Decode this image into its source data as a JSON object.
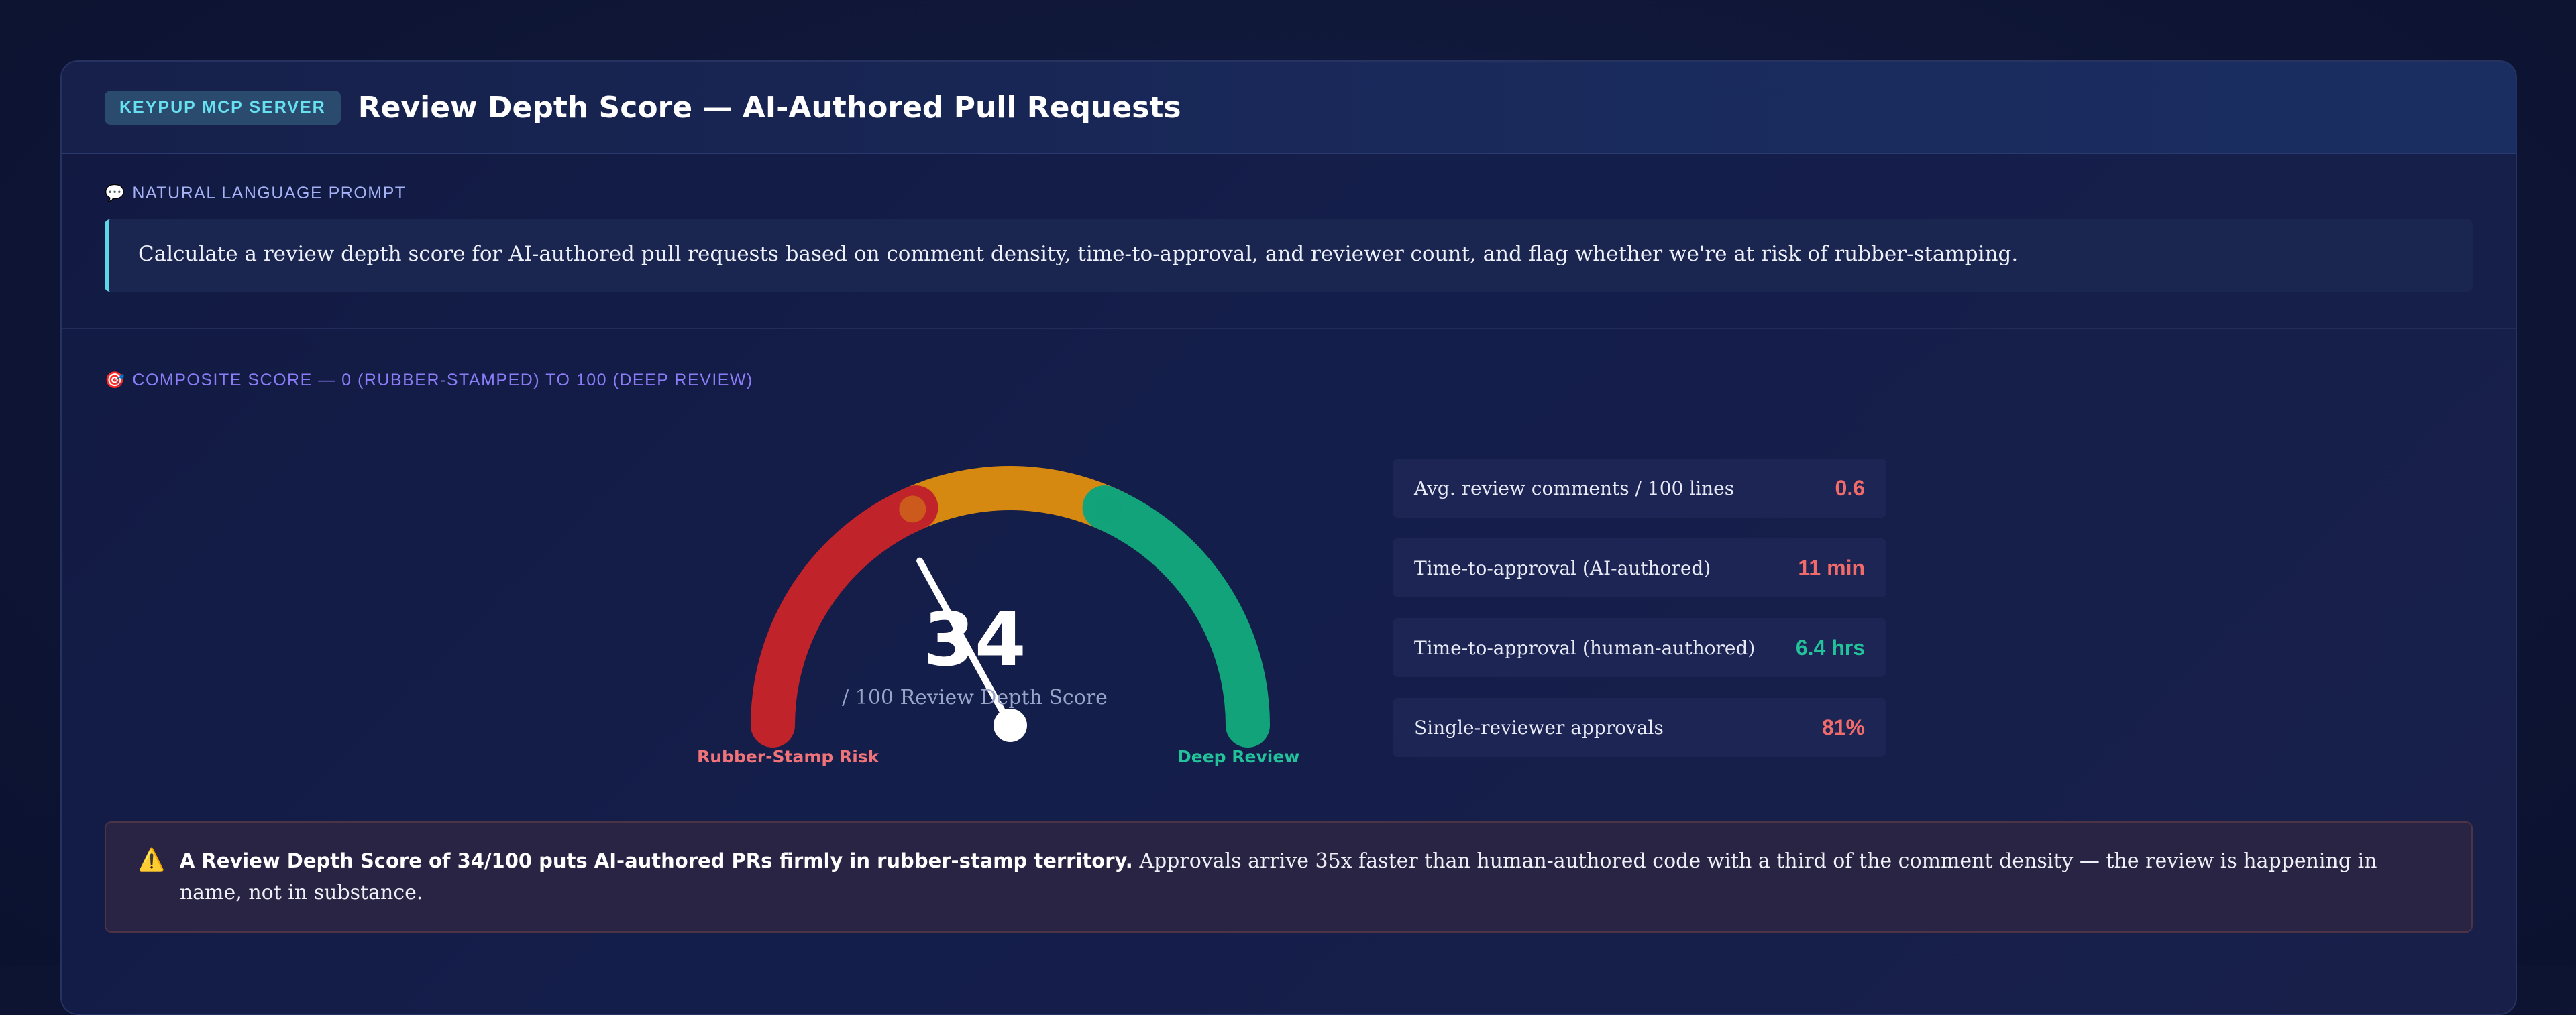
{
  "header": {
    "badge": "KEYPUP MCP SERVER",
    "title": "Review Depth Score — AI-Authored Pull Requests"
  },
  "prompt": {
    "label": "NATURAL LANGUAGE PROMPT",
    "icon": "speech-bubble-icon",
    "text": "Calculate a review depth score for AI-authored pull requests based on comment density, time-to-approval, and reviewer count, and flag whether we're at risk of rubber-stamping."
  },
  "score_section": {
    "label": "COMPOSITE SCORE — 0 (RUBBER-STAMPED) TO 100 (DEEP REVIEW)",
    "icon": "target-icon"
  },
  "gauge": {
    "value": 34,
    "max": 100,
    "display_value": "34",
    "subtitle": "/ 100 Review Depth Score",
    "left_label": "Rubber-Stamp Risk",
    "right_label": "Deep Review",
    "colors": {
      "low": "#c0232a",
      "mid": "#d68910",
      "high": "#12a37a",
      "needle": "#ffffff"
    }
  },
  "metrics": [
    {
      "label": "Avg. review comments / 100 lines",
      "value": "0.6",
      "color": "#f26b6b"
    },
    {
      "label": "Time-to-approval (AI-authored)",
      "value": "11 min",
      "color": "#f26b6b"
    },
    {
      "label": "Time-to-approval (human-authored)",
      "value": "6.4 hrs",
      "color": "#22c39a"
    },
    {
      "label": "Single-reviewer approvals",
      "value": "81%",
      "color": "#f26b6b"
    }
  ],
  "alert": {
    "icon": "warning-icon",
    "bold": "A Review Depth Score of 34/100 puts AI-authored PRs firmly in rubber-stamp territory.",
    "text": " Approvals arrive 35x faster than human-authored code with a third of the comment density — the review is happening in name, not in substance."
  }
}
